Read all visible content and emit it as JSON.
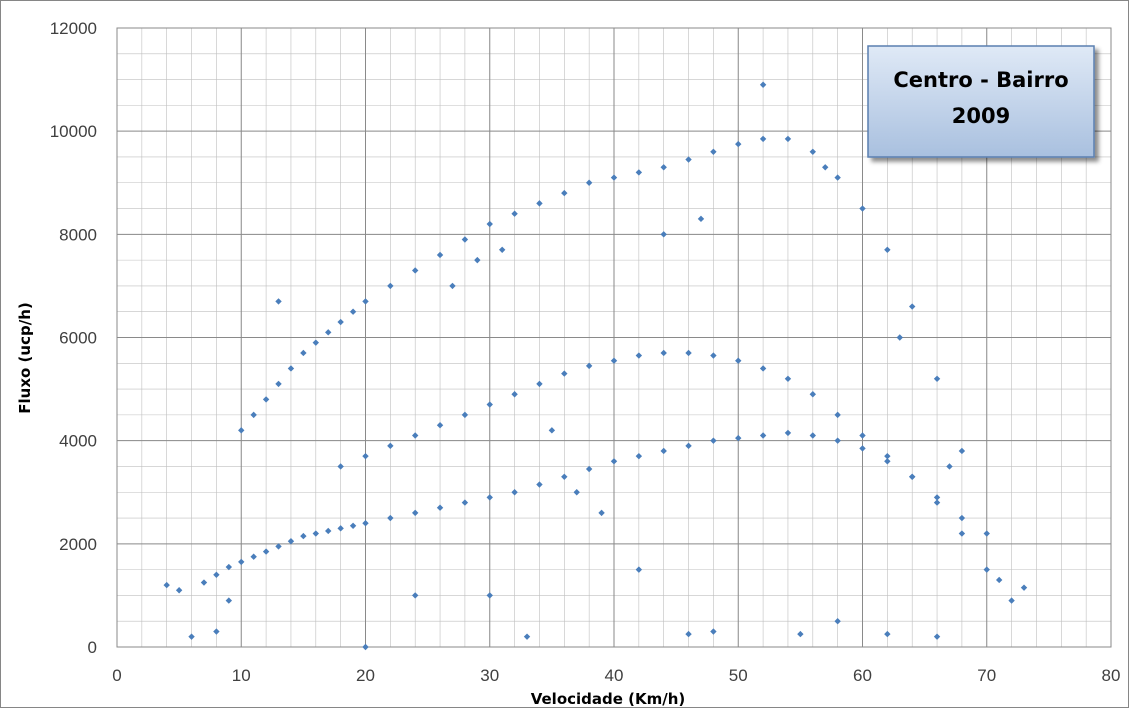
{
  "chart_data": {
    "type": "scatter",
    "title": "Centro - Bairro",
    "subtitle": "2009",
    "xlabel": "Velocidade (Km/h)",
    "ylabel": "Fluxo (ucp/h)",
    "xlim": [
      0,
      80
    ],
    "ylim": [
      0,
      12000
    ],
    "x_ticks": [
      "0",
      "10",
      "20",
      "30",
      "40",
      "50",
      "60",
      "70",
      "80"
    ],
    "y_ticks": [
      "0",
      "2000",
      "4000",
      "6000",
      "8000",
      "10000",
      "12000"
    ],
    "grid": true,
    "legend": "none",
    "marker_color": "#4a7ebb",
    "series": [
      {
        "x": [
          5,
          7,
          8,
          9,
          10,
          11,
          12,
          13,
          14,
          15,
          16,
          17,
          18,
          19,
          20,
          22,
          24,
          26,
          28,
          30,
          32,
          34,
          36,
          38,
          40,
          42,
          44,
          46,
          48,
          50,
          52,
          54,
          56,
          58,
          60,
          62,
          64,
          66,
          68,
          70,
          72,
          10,
          11,
          12,
          13,
          14,
          15,
          16,
          17,
          18,
          19,
          20,
          22,
          24,
          26,
          28,
          30,
          32,
          34,
          36,
          38,
          40,
          42,
          44,
          46,
          48,
          50,
          52,
          54,
          56,
          58,
          60,
          62,
          64,
          66,
          68,
          70,
          18,
          20,
          22,
          24,
          26,
          28,
          30,
          32,
          34,
          36,
          38,
          40,
          42,
          44,
          46,
          48,
          50,
          52,
          54,
          56,
          58,
          60,
          62,
          64,
          66,
          68,
          8,
          13,
          20,
          24,
          33,
          46,
          48,
          55,
          58,
          62,
          66,
          4,
          6,
          9,
          30,
          42,
          35,
          37,
          39,
          27,
          29,
          31,
          44,
          47,
          52,
          57,
          63,
          67,
          71,
          73
        ],
        "y": [
          1100,
          1250,
          1400,
          1550,
          1650,
          1750,
          1850,
          1950,
          2050,
          2150,
          2200,
          2250,
          2300,
          2350,
          2400,
          2500,
          2600,
          2700,
          2800,
          2900,
          3000,
          3150,
          3300,
          3450,
          3600,
          3700,
          3800,
          3900,
          4000,
          4050,
          4100,
          4150,
          4100,
          4000,
          3850,
          3600,
          3300,
          2800,
          2200,
          1500,
          900,
          4200,
          4500,
          4800,
          5100,
          5400,
          5700,
          5900,
          6100,
          6300,
          6500,
          6700,
          7000,
          7300,
          7600,
          7900,
          8200,
          8400,
          8600,
          8800,
          9000,
          9100,
          9200,
          9300,
          9450,
          9600,
          9750,
          9850,
          9850,
          9600,
          9100,
          8500,
          7700,
          6600,
          5200,
          3800,
          2200,
          3500,
          3700,
          3900,
          4100,
          4300,
          4500,
          4700,
          4900,
          5100,
          5300,
          5450,
          5550,
          5650,
          5700,
          5700,
          5650,
          5550,
          5400,
          5200,
          4900,
          4500,
          4100,
          3700,
          3300,
          2900,
          2500,
          300,
          6700,
          0,
          1000,
          200,
          250,
          300,
          250,
          500,
          250,
          200,
          1200,
          200,
          900,
          1000,
          1500,
          4200,
          3000,
          2600,
          7000,
          7500,
          7700,
          8000,
          8300,
          10900,
          9300,
          6000,
          3500,
          1300,
          1150
        ]
      }
    ]
  }
}
